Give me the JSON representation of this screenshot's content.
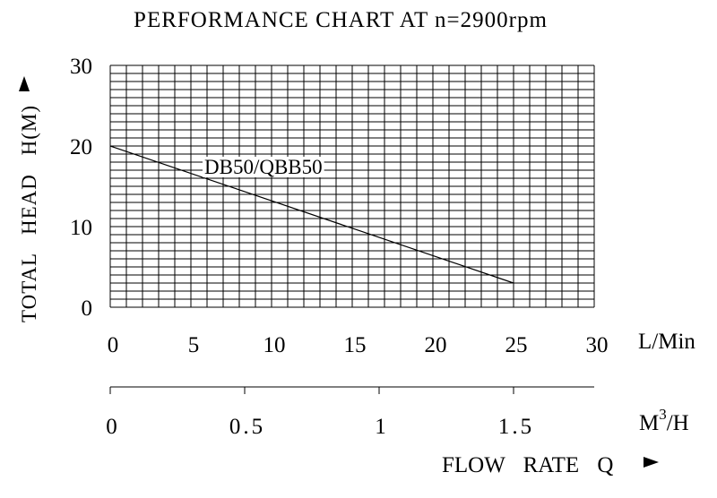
{
  "chart_data": {
    "type": "line",
    "title": "PERFORMANCE CHART AT n=2900rpm",
    "ylabel": "TOTAL HEAD H(M)",
    "xlabel": "FLOW RATE Q",
    "x_unit_primary": "L/Min",
    "x_unit_secondary_base": "M",
    "x_unit_secondary_sup": "3",
    "x_unit_secondary_tail": "/H",
    "xlim": [
      0,
      30
    ],
    "ylim": [
      0,
      30
    ],
    "grid": true,
    "x_ticks": [
      "0",
      "5",
      "10",
      "15",
      "20",
      "25",
      "30"
    ],
    "y_ticks": [
      "0",
      "10",
      "20",
      "30"
    ],
    "secondary_ticks": [
      {
        "value": 0,
        "label": "0"
      },
      {
        "value": 0.5,
        "label": "0.5"
      },
      {
        "value": 1,
        "label": "1"
      },
      {
        "value": 1.5,
        "label": "1.5"
      }
    ],
    "series": [
      {
        "name": "DB50/QBB50",
        "x": [
          0,
          25
        ],
        "y": [
          20,
          3
        ]
      }
    ]
  }
}
